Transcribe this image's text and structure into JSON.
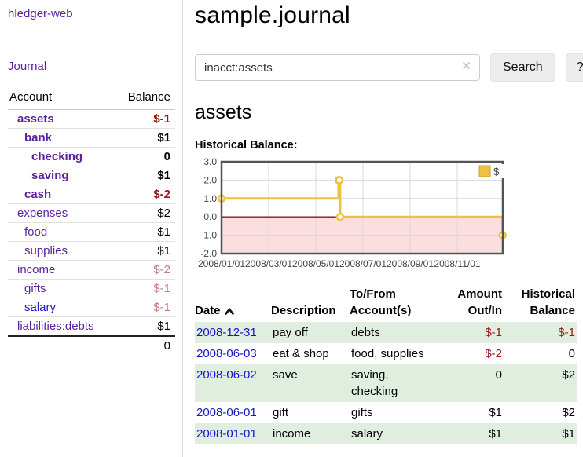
{
  "sidebar": {
    "brand": "hledger-web",
    "nav": {
      "journal": "Journal"
    },
    "accounts": {
      "headers": {
        "account": "Account",
        "balance": "Balance"
      },
      "rows": [
        {
          "label": "assets",
          "balance": "$-1"
        },
        {
          "label": "bank",
          "balance": "$1"
        },
        {
          "label": "checking",
          "balance": "0"
        },
        {
          "label": "saving",
          "balance": "$1"
        },
        {
          "label": "cash",
          "balance": "$-2"
        },
        {
          "label": "expenses",
          "balance": "$2"
        },
        {
          "label": "food",
          "balance": "$1"
        },
        {
          "label": "supplies",
          "balance": "$1"
        },
        {
          "label": "income",
          "balance": "$-2"
        },
        {
          "label": "gifts",
          "balance": "$-1"
        },
        {
          "label": "salary",
          "balance": "$-1"
        },
        {
          "label": "liabilities:debts",
          "balance": "$1"
        }
      ],
      "total": "0"
    }
  },
  "main": {
    "title": "sample.journal",
    "search": {
      "value": "inacct:assets",
      "clear_icon": "✕",
      "button": "Search",
      "help_button": "?"
    },
    "account_heading": "assets",
    "chart_label": "Historical Balance:",
    "register": {
      "headers": {
        "date": "Date",
        "description": "Description",
        "accounts": "To/From Account(s)",
        "amount": "Amount Out/In",
        "balance": "Historical Balance"
      },
      "rows": [
        {
          "date": "2008-12-31",
          "description": "pay off",
          "accounts": "debts",
          "amount": "$-1",
          "balance": "$-1"
        },
        {
          "date": "2008-06-03",
          "description": "eat & shop",
          "accounts": "food, supplies",
          "amount": "$-2",
          "balance": "0"
        },
        {
          "date": "2008-06-02",
          "description": "save",
          "accounts": "saving, checking",
          "amount": "0",
          "balance": "$2"
        },
        {
          "date": "2008-06-01",
          "description": "gift",
          "accounts": "gifts",
          "amount": "$1",
          "balance": "$2"
        },
        {
          "date": "2008-01-01",
          "description": "income",
          "accounts": "salary",
          "amount": "$1",
          "balance": "$1"
        }
      ]
    }
  },
  "chart_data": {
    "type": "line",
    "step": true,
    "title": "Historical Balance",
    "series": [
      {
        "name": "$",
        "color": "#edc240",
        "points": [
          [
            "2008-01-01",
            1
          ],
          [
            "2008-06-01",
            2
          ],
          [
            "2008-06-02",
            2
          ],
          [
            "2008-06-03",
            0
          ],
          [
            "2008-12-31",
            -1
          ]
        ]
      }
    ],
    "ylim": [
      -2,
      3
    ],
    "yticks": [
      "3.0",
      "2.0",
      "1.0",
      "0.0",
      "-1.0",
      "-2.0"
    ],
    "xlim": [
      "2008-01-01",
      "2008-12-31"
    ],
    "xticks": [
      "2008/01/01",
      "2008/03/01",
      "2008/05/01",
      "2008/07/01",
      "2008/09/01",
      "2008/11/01"
    ],
    "grid": true,
    "legend_position": "top-right",
    "negative_region_color": "#fbdede",
    "zero_line_color": "#991111",
    "border_color": "#545454"
  }
}
